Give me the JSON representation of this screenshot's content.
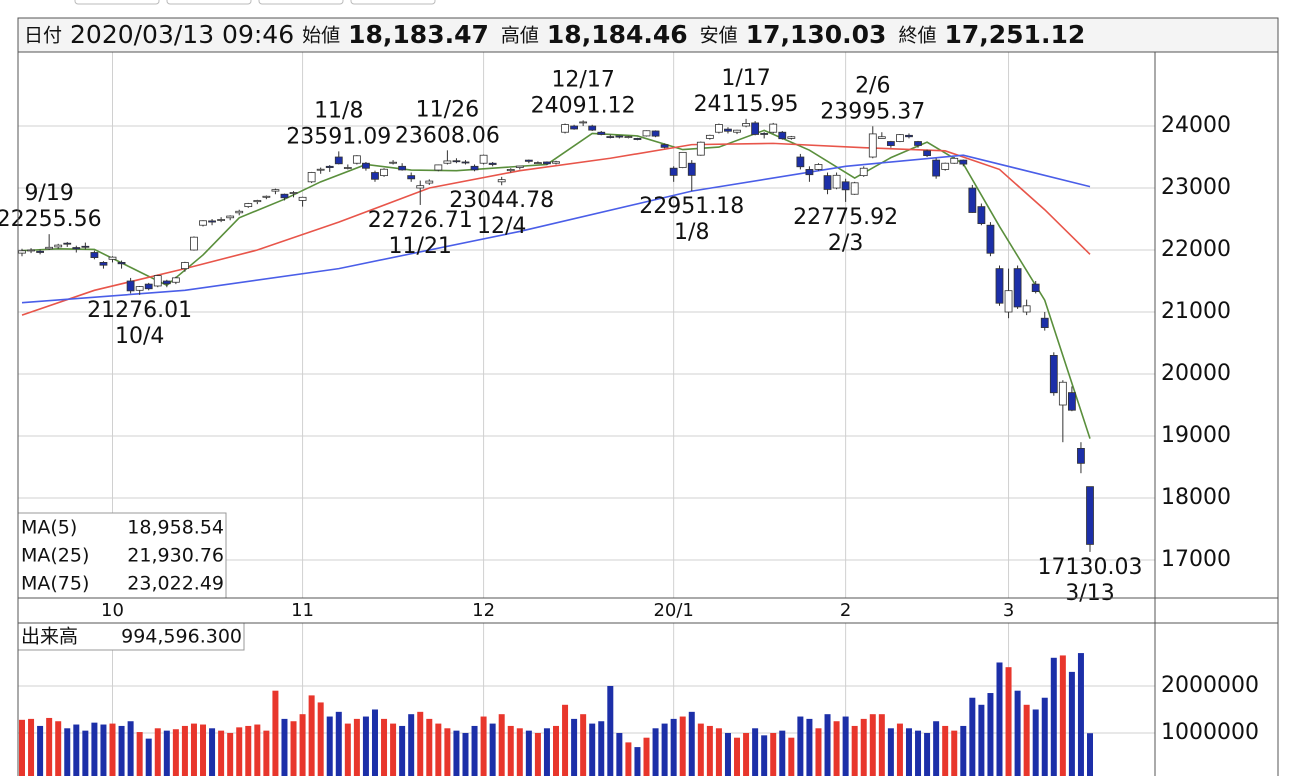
{
  "header": {
    "date_label": "日付",
    "date": "2020/03/13 09:46",
    "items": [
      {
        "label": "始値",
        "value": "18,183.47",
        "color": "#111111"
      },
      {
        "label": "高値",
        "value": "18,184.46",
        "color": "#e8362c"
      },
      {
        "label": "安値",
        "value": "17,130.03",
        "color": "#2e7d1e"
      },
      {
        "label": "終値",
        "value": "17,251.12",
        "color": "#111111"
      }
    ]
  },
  "chart_data": [
    {
      "type": "candlestick",
      "x": [
        "9/13",
        "9/17",
        "9/18",
        "9/19",
        "9/20",
        "9/24",
        "9/25",
        "9/26",
        "9/27",
        "9/30",
        "10/1",
        "10/2",
        "10/3",
        "10/4",
        "10/7",
        "10/8",
        "10/9",
        "10/10",
        "10/11",
        "10/15",
        "10/16",
        "10/17",
        "10/18",
        "10/21",
        "10/23",
        "10/24",
        "10/25",
        "10/28",
        "10/29",
        "10/30",
        "10/31",
        "11/1",
        "11/5",
        "11/6",
        "11/7",
        "11/8",
        "11/11",
        "11/12",
        "11/13",
        "11/14",
        "11/15",
        "11/18",
        "11/19",
        "11/20",
        "11/21",
        "11/22",
        "11/25",
        "11/26",
        "11/27",
        "11/28",
        "11/29",
        "12/2",
        "12/3",
        "12/4",
        "12/5",
        "12/6",
        "12/9",
        "12/10",
        "12/11",
        "12/12",
        "12/13",
        "12/16",
        "12/17",
        "12/18",
        "12/19",
        "12/20",
        "12/23",
        "12/24",
        "12/25",
        "12/26",
        "12/27",
        "12/30",
        "1/6",
        "1/7",
        "1/8",
        "1/9",
        "1/10",
        "1/14",
        "1/15",
        "1/16",
        "1/17",
        "1/20",
        "1/21",
        "1/22",
        "1/23",
        "1/24",
        "1/27",
        "1/28",
        "1/29",
        "1/30",
        "1/31",
        "2/3",
        "2/4",
        "2/5",
        "2/6",
        "2/7",
        "2/10",
        "2/12",
        "2/13",
        "2/14",
        "2/17",
        "2/18",
        "2/19",
        "2/20",
        "2/21",
        "2/25",
        "2/26",
        "2/27",
        "2/28",
        "3/2",
        "3/3",
        "3/4",
        "3/5",
        "3/6",
        "3/9",
        "3/10",
        "3/11",
        "3/12",
        "3/13"
      ],
      "ohlc": [
        [
          21950,
          22020,
          21900,
          21988
        ],
        [
          22000,
          22030,
          21950,
          22001
        ],
        [
          21980,
          22010,
          21930,
          21960
        ],
        [
          22020,
          22255.56,
          22000,
          22044
        ],
        [
          22050,
          22100,
          22020,
          22079
        ],
        [
          22110,
          22130,
          22050,
          22098
        ],
        [
          22040,
          22070,
          21960,
          22020
        ],
        [
          22060,
          22120,
          22010,
          22048
        ],
        [
          21960,
          21990,
          21850,
          21878
        ],
        [
          21800,
          21820,
          21700,
          21755
        ],
        [
          21850,
          21900,
          21800,
          21885
        ],
        [
          21800,
          21830,
          21700,
          21778
        ],
        [
          21500,
          21550,
          21300,
          21341
        ],
        [
          21350,
          21420,
          21276.01,
          21410
        ],
        [
          21450,
          21470,
          21350,
          21375
        ],
        [
          21420,
          21600,
          21400,
          21587
        ],
        [
          21500,
          21520,
          21400,
          21456
        ],
        [
          21480,
          21570,
          21450,
          21551
        ],
        [
          21700,
          21810,
          21650,
          21798
        ],
        [
          22000,
          22220,
          21990,
          22207
        ],
        [
          22400,
          22480,
          22380,
          22472
        ],
        [
          22470,
          22500,
          22400,
          22451
        ],
        [
          22480,
          22530,
          22450,
          22492
        ],
        [
          22520,
          22560,
          22480,
          22548
        ],
        [
          22600,
          22650,
          22560,
          22625
        ],
        [
          22700,
          22760,
          22680,
          22750
        ],
        [
          22780,
          22810,
          22740,
          22799
        ],
        [
          22850,
          22880,
          22820,
          22867
        ],
        [
          22950,
          22990,
          22900,
          22974
        ],
        [
          22900,
          22910,
          22800,
          22843
        ],
        [
          22920,
          22950,
          22850,
          22927
        ],
        [
          22800,
          22860,
          22700,
          22850
        ],
        [
          23100,
          23260,
          23080,
          23251
        ],
        [
          23300,
          23330,
          23230,
          23303
        ],
        [
          23350,
          23370,
          23260,
          23330
        ],
        [
          23500,
          23591.09,
          23380,
          23391
        ],
        [
          23320,
          23380,
          23300,
          23331
        ],
        [
          23400,
          23530,
          23380,
          23520
        ],
        [
          23400,
          23420,
          23280,
          23319
        ],
        [
          23250,
          23280,
          23100,
          23141
        ],
        [
          23200,
          23320,
          23180,
          23303
        ],
        [
          23400,
          23450,
          23380,
          23416
        ],
        [
          23350,
          23400,
          23280,
          23292
        ],
        [
          23200,
          23250,
          23100,
          23148
        ],
        [
          23000,
          23120,
          22726.71,
          23038
        ],
        [
          23080,
          23140,
          23050,
          23112
        ],
        [
          23290,
          23380,
          23270,
          23373
        ],
        [
          23400,
          23608.06,
          23380,
          23437
        ],
        [
          23440,
          23480,
          23400,
          23437
        ],
        [
          23420,
          23450,
          23380,
          23409
        ],
        [
          23350,
          23380,
          23270,
          23293
        ],
        [
          23400,
          23540,
          23380,
          23529
        ],
        [
          23400,
          23420,
          23350,
          23379
        ],
        [
          23100,
          23180,
          23044.78,
          23135
        ],
        [
          23280,
          23320,
          23250,
          23300
        ],
        [
          23330,
          23360,
          23300,
          23354
        ],
        [
          23450,
          23460,
          23400,
          23430
        ],
        [
          23400,
          23430,
          23390,
          23410
        ],
        [
          23420,
          23430,
          23370,
          23391
        ],
        [
          23400,
          23440,
          23380,
          23424
        ],
        [
          23900,
          24040,
          23880,
          24023
        ],
        [
          24000,
          24020,
          23940,
          23952
        ],
        [
          24050,
          24091.12,
          24000,
          24066
        ],
        [
          24000,
          24020,
          23920,
          23934
        ],
        [
          23900,
          23920,
          23850,
          23864
        ],
        [
          23830,
          23860,
          23800,
          23816
        ],
        [
          23840,
          23850,
          23800,
          23821
        ],
        [
          23820,
          23840,
          23800,
          23830
        ],
        [
          23800,
          23810,
          23770,
          23782
        ],
        [
          23840,
          23930,
          23830,
          23924
        ],
        [
          23920,
          23930,
          23820,
          23837
        ],
        [
          23700,
          23720,
          23640,
          23656
        ],
        [
          23320,
          23350,
          23100,
          23204
        ],
        [
          23330,
          23580,
          23320,
          23575
        ],
        [
          23400,
          23450,
          22951.18,
          23204
        ],
        [
          23530,
          23750,
          23520,
          23739
        ],
        [
          23800,
          23860,
          23780,
          23850
        ],
        [
          23900,
          24040,
          23880,
          24025
        ],
        [
          23950,
          23980,
          23880,
          23916
        ],
        [
          23900,
          23940,
          23870,
          23933
        ],
        [
          24000,
          24115.95,
          23980,
          24041
        ],
        [
          24050,
          24080,
          23850,
          23864
        ],
        [
          23880,
          23900,
          23800,
          23864
        ],
        [
          23900,
          24050,
          23880,
          24031
        ],
        [
          23900,
          23920,
          23780,
          23795
        ],
        [
          23800,
          23840,
          23780,
          23827
        ],
        [
          23500,
          23550,
          23300,
          23343
        ],
        [
          23300,
          23350,
          23100,
          23215
        ],
        [
          23300,
          23400,
          23280,
          23379
        ],
        [
          23200,
          23250,
          22900,
          22977
        ],
        [
          23000,
          23250,
          22980,
          23205
        ],
        [
          23100,
          23150,
          22775.92,
          22971
        ],
        [
          22900,
          23100,
          22890,
          23084
        ],
        [
          23200,
          23350,
          23180,
          23319
        ],
        [
          23500,
          23995.37,
          23480,
          23873
        ],
        [
          23800,
          23900,
          23800,
          23827
        ],
        [
          23750,
          23760,
          23650,
          23685
        ],
        [
          23750,
          23870,
          23740,
          23861
        ],
        [
          23850,
          23880,
          23800,
          23827
        ],
        [
          23750,
          23760,
          23650,
          23687
        ],
        [
          23600,
          23620,
          23500,
          23523
        ],
        [
          23450,
          23480,
          23150,
          23193
        ],
        [
          23300,
          23410,
          23280,
          23400
        ],
        [
          23400,
          23500,
          23390,
          23479
        ],
        [
          23450,
          23460,
          23350,
          23386
        ],
        [
          23000,
          23050,
          22600,
          22605
        ],
        [
          22700,
          22750,
          22400,
          22426
        ],
        [
          22400,
          22450,
          21900,
          21948
        ],
        [
          21700,
          21750,
          21100,
          21142
        ],
        [
          21000,
          21700,
          20900,
          21344
        ],
        [
          21700,
          21750,
          21050,
          21082
        ],
        [
          21000,
          21200,
          20950,
          21100
        ],
        [
          21450,
          21500,
          21300,
          21329
        ],
        [
          20900,
          21000,
          20700,
          20749
        ],
        [
          20300,
          20350,
          19650,
          19698
        ],
        [
          19500,
          19900,
          18900,
          19867
        ],
        [
          19700,
          19800,
          19400,
          19416
        ],
        [
          18800,
          18900,
          18400,
          18559
        ],
        [
          18183.47,
          18184.46,
          17130.03,
          17251.12
        ]
      ],
      "up_color": "#ffffff",
      "down_color": "#1c2fa8",
      "ma": [
        {
          "name": "MA(5)",
          "color": "#5a8f3c",
          "legend_value": "18,958.54",
          "x": [
            "9/13",
            "9/20",
            "9/27",
            "10/3",
            "10/9",
            "10/16",
            "10/23",
            "10/30",
            "11/6",
            "11/13",
            "11/20",
            "11/27",
            "12/4",
            "12/11",
            "12/18",
            "12/25",
            "1/7",
            "1/14",
            "1/21",
            "1/28",
            "2/4",
            "2/10",
            "2/17",
            "2/21",
            "2/28",
            "3/6",
            "3/13"
          ],
          "values": [
            21990,
            22020,
            22010,
            21720,
            21430,
            21920,
            22520,
            22820,
            23100,
            23380,
            23290,
            23280,
            23330,
            23380,
            23880,
            23840,
            23620,
            23660,
            23930,
            23610,
            23160,
            23490,
            23740,
            23390,
            22380,
            21190,
            18958.54
          ]
        },
        {
          "name": "MA(25)",
          "color": "#e8554a",
          "legend_value": "21,930.76",
          "x": [
            "9/13",
            "9/27",
            "10/11",
            "10/25",
            "11/8",
            "11/22",
            "12/6",
            "12/20",
            "1/8",
            "1/22",
            "2/5",
            "2/19",
            "2/28",
            "3/6",
            "3/13"
          ],
          "values": [
            20950,
            21350,
            21700,
            22000,
            22450,
            23000,
            23280,
            23480,
            23700,
            23720,
            23650,
            23600,
            23300,
            22650,
            21930.76
          ]
        },
        {
          "name": "MA(75)",
          "color": "#4a5ee8",
          "legend_value": "23,022.49",
          "x": [
            "9/13",
            "10/11",
            "11/8",
            "12/6",
            "1/8",
            "2/3",
            "2/21",
            "3/13"
          ],
          "values": [
            21150,
            21350,
            21700,
            22300,
            22950,
            23350,
            23530,
            23022.49
          ]
        }
      ],
      "annotations": [
        {
          "x": "9/19",
          "price": 22255.56,
          "side": "above"
        },
        {
          "x": "10/4",
          "price": 21276.01,
          "side": "below"
        },
        {
          "x": "11/8",
          "price": 23591.09,
          "side": "above"
        },
        {
          "x": "11/21",
          "price": 22726.71,
          "side": "below"
        },
        {
          "x": "11/26",
          "price": 23608.06,
          "side": "above"
        },
        {
          "x": "12/4",
          "price": 23044.78,
          "side": "below"
        },
        {
          "x": "12/17",
          "price": 24091.12,
          "side": "above"
        },
        {
          "x": "1/8",
          "price": 22951.18,
          "side": "below"
        },
        {
          "x": "1/17",
          "price": 24115.95,
          "side": "above"
        },
        {
          "x": "2/3",
          "price": 22775.92,
          "side": "below"
        },
        {
          "x": "2/6",
          "price": 23995.37,
          "side": "above"
        },
        {
          "x": "3/13",
          "price": 17130.03,
          "side": "below"
        }
      ],
      "xticks": [
        {
          "value": "10/1",
          "label": "10"
        },
        {
          "value": "11/1",
          "label": "11"
        },
        {
          "value": "12/2",
          "label": "12"
        },
        {
          "value": "1/6",
          "label": "20/1"
        },
        {
          "value": "2/3",
          "label": "2"
        },
        {
          "value": "3/2",
          "label": "3"
        }
      ],
      "ylim": [
        16387,
        25194
      ],
      "yticks": [
        17000,
        18000,
        19000,
        20000,
        21000,
        22000,
        23000,
        24000
      ],
      "grid": true
    },
    {
      "type": "bar",
      "name": "出来高",
      "legend_value": "994,596.300",
      "up_color": "#e8362c",
      "down_color": "#1c2fa8",
      "values": [
        1280000,
        1300000,
        1150000,
        1320000,
        1250000,
        1100000,
        1180000,
        1050000,
        1220000,
        1180000,
        1200000,
        1150000,
        1250000,
        1020000,
        880000,
        1100000,
        1050000,
        1080000,
        1150000,
        1200000,
        1180000,
        1100000,
        1050000,
        1000000,
        1120000,
        1150000,
        1180000,
        1050000,
        1900000,
        1300000,
        1250000,
        1400000,
        1800000,
        1650000,
        1350000,
        1450000,
        1200000,
        1300000,
        1350000,
        1500000,
        1300000,
        1200000,
        1150000,
        1400000,
        1450000,
        1300000,
        1200000,
        1100000,
        1050000,
        1000000,
        1150000,
        1350000,
        1200000,
        1400000,
        1150000,
        1100000,
        1050000,
        1000000,
        1100000,
        1150000,
        1600000,
        1300000,
        1400000,
        1200000,
        1250000,
        2000000,
        1000000,
        800000,
        700000,
        900000,
        1100000,
        1200000,
        1300000,
        1350000,
        1450000,
        1200000,
        1150000,
        1100000,
        1000000,
        900000,
        1000000,
        1100000,
        950000,
        1000000,
        1050000,
        900000,
        1350000,
        1300000,
        1100000,
        1400000,
        1250000,
        1350000,
        1150000,
        1300000,
        1400000,
        1400000,
        1100000,
        1200000,
        1100000,
        1050000,
        1000000,
        1250000,
        1150000,
        1050000,
        1150000,
        1750000,
        1600000,
        1850000,
        2500000,
        2400000,
        1900000,
        1600000,
        1500000,
        1750000,
        2600000,
        2650000,
        2300000,
        2700000,
        994596.3
      ],
      "ylim": [
        85000,
        3340000
      ],
      "yticks": [
        1000000,
        2000000
      ],
      "grid": true
    }
  ]
}
